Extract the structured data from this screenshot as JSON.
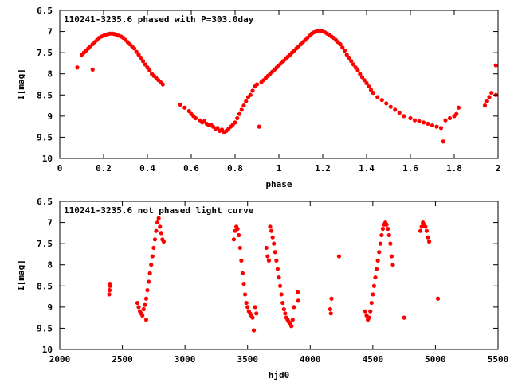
{
  "colors": {
    "marker": "#ff0000",
    "axis": "#000000",
    "background": "#ffffff"
  },
  "chart_data": [
    {
      "type": "scatter",
      "title": "110241-3235.6 phased with P=303.0day",
      "xlabel": "phase",
      "ylabel": "I[mag]",
      "xlim": [
        0,
        2
      ],
      "ylim": [
        6.5,
        10
      ],
      "y_inverted": true,
      "grid": false,
      "xticks": [
        "0",
        "0.2",
        "0.4",
        "0.6",
        "0.8",
        "1",
        "1.2",
        "1.4",
        "1.6",
        "1.8",
        "2"
      ],
      "yticks": [
        "6.5",
        "7",
        "7.5",
        "8",
        "8.5",
        "9",
        "9.5",
        "10"
      ],
      "marker": "filled-circle",
      "x": [
        0.08,
        0.1,
        0.11,
        0.12,
        0.13,
        0.14,
        0.15,
        0.16,
        0.17,
        0.18,
        0.19,
        0.2,
        0.21,
        0.22,
        0.23,
        0.24,
        0.25,
        0.26,
        0.27,
        0.28,
        0.29,
        0.3,
        0.31,
        0.32,
        0.33,
        0.34,
        0.35,
        0.36,
        0.37,
        0.38,
        0.39,
        0.4,
        0.41,
        0.42,
        0.43,
        0.44,
        0.45,
        0.46,
        0.47,
        0.15,
        0.55,
        0.57,
        0.59,
        0.6,
        0.61,
        0.62,
        0.64,
        0.65,
        0.66,
        0.67,
        0.68,
        0.69,
        0.7,
        0.71,
        0.72,
        0.73,
        0.74,
        0.75,
        0.76,
        0.77,
        0.78,
        0.79,
        0.8,
        0.81,
        0.82,
        0.83,
        0.84,
        0.85,
        0.86,
        0.87,
        0.88,
        0.89,
        0.9,
        0.91,
        0.92,
        0.93,
        0.94,
        0.95,
        0.96,
        0.97,
        0.98,
        0.99,
        1.0,
        1.01,
        1.02,
        1.03,
        1.04,
        1.05,
        1.06,
        1.07,
        1.08,
        1.09,
        1.1,
        1.11,
        1.12,
        1.13,
        1.14,
        1.15,
        1.16,
        1.17,
        1.18,
        1.19,
        1.2,
        1.21,
        1.22,
        1.23,
        1.24,
        1.25,
        1.26,
        1.27,
        1.28,
        1.29,
        1.3,
        1.31,
        1.32,
        1.33,
        1.34,
        1.35,
        1.36,
        1.37,
        1.38,
        1.39,
        1.4,
        1.41,
        1.42,
        1.43,
        1.45,
        1.47,
        1.49,
        1.51,
        1.53,
        1.55,
        1.57,
        1.6,
        1.62,
        1.64,
        1.66,
        1.68,
        1.7,
        1.72,
        1.74,
        1.75,
        1.76,
        1.78,
        1.8,
        1.81,
        1.82,
        1.94,
        1.95,
        1.96,
        1.97,
        1.99,
        1.99
      ],
      "y": [
        7.85,
        7.55,
        7.5,
        7.45,
        7.4,
        7.35,
        7.3,
        7.25,
        7.2,
        7.15,
        7.12,
        7.1,
        7.08,
        7.06,
        7.05,
        7.05,
        7.06,
        7.08,
        7.1,
        7.12,
        7.15,
        7.2,
        7.25,
        7.3,
        7.35,
        7.4,
        7.48,
        7.55,
        7.62,
        7.7,
        7.78,
        7.85,
        7.92,
        8.0,
        8.05,
        8.1,
        8.15,
        8.2,
        8.25,
        7.9,
        8.73,
        8.8,
        8.88,
        8.95,
        9.0,
        9.05,
        9.1,
        9.15,
        9.12,
        9.18,
        9.22,
        9.2,
        9.25,
        9.3,
        9.28,
        9.35,
        9.32,
        9.38,
        9.35,
        9.3,
        9.25,
        9.2,
        9.15,
        9.05,
        8.95,
        8.85,
        8.75,
        8.65,
        8.55,
        8.5,
        8.4,
        8.3,
        8.25,
        9.25,
        8.2,
        8.15,
        8.1,
        8.05,
        8.0,
        7.95,
        7.9,
        7.85,
        7.8,
        7.75,
        7.7,
        7.65,
        7.6,
        7.55,
        7.5,
        7.45,
        7.4,
        7.35,
        7.3,
        7.25,
        7.2,
        7.15,
        7.1,
        7.05,
        7.02,
        7.0,
        6.98,
        6.98,
        7.0,
        7.02,
        7.05,
        7.08,
        7.12,
        7.15,
        7.2,
        7.25,
        7.3,
        7.38,
        7.45,
        7.55,
        7.62,
        7.7,
        7.78,
        7.85,
        7.92,
        8.0,
        8.08,
        8.15,
        8.22,
        8.3,
        8.38,
        8.45,
        8.55,
        8.62,
        8.7,
        8.78,
        8.85,
        8.92,
        9.0,
        9.05,
        9.1,
        9.12,
        9.15,
        9.18,
        9.22,
        9.25,
        9.28,
        9.6,
        9.1,
        9.05,
        9.0,
        8.95,
        8.8,
        8.75,
        8.65,
        8.55,
        8.45,
        8.5,
        7.8
      ],
      "xlim_note": ""
    },
    {
      "type": "scatter",
      "title": "110241-3235.6 not phased light curve",
      "xlabel": "hjd0",
      "ylabel": "I[mag]",
      "xlim": [
        2000,
        5500
      ],
      "ylim": [
        6.5,
        10
      ],
      "y_inverted": true,
      "grid": false,
      "xticks": [
        "2000",
        "2500",
        "3000",
        "3500",
        "4000",
        "4500",
        "5000",
        "5500"
      ],
      "yticks": [
        "6.5",
        "7",
        "7.5",
        "8",
        "8.5",
        "9",
        "9.5",
        "10"
      ],
      "marker": "filled-circle",
      "x": [
        2395,
        2398,
        2400,
        2402,
        2620,
        2630,
        2640,
        2650,
        2660,
        2670,
        2680,
        2690,
        2700,
        2710,
        2720,
        2730,
        2740,
        2750,
        2760,
        2770,
        2780,
        2790,
        2800,
        2810,
        2820,
        2830,
        2690,
        3390,
        3400,
        3410,
        3420,
        3430,
        3440,
        3450,
        3460,
        3470,
        3480,
        3490,
        3500,
        3510,
        3520,
        3530,
        3540,
        3550,
        3560,
        3570,
        3650,
        3660,
        3670,
        3680,
        3690,
        3700,
        3710,
        3720,
        3730,
        3740,
        3750,
        3760,
        3770,
        3780,
        3790,
        3800,
        3810,
        3820,
        3830,
        3840,
        3850,
        3860,
        3870,
        3900,
        3905,
        4160,
        4165,
        4170,
        4230,
        4440,
        4450,
        4460,
        4470,
        4480,
        4490,
        4500,
        4510,
        4520,
        4530,
        4540,
        4550,
        4560,
        4570,
        4580,
        4590,
        4600,
        4610,
        4620,
        4630,
        4640,
        4650,
        4660,
        4750,
        4880,
        4890,
        4900,
        4910,
        4920,
        4930,
        4940,
        4950,
        5020
      ],
      "y": [
        8.7,
        8.6,
        8.45,
        8.5,
        8.9,
        9.0,
        9.1,
        9.15,
        9.2,
        9.05,
        8.95,
        8.8,
        8.6,
        8.4,
        8.2,
        8.0,
        7.8,
        7.6,
        7.4,
        7.2,
        7.0,
        6.9,
        7.1,
        7.25,
        7.4,
        7.45,
        9.3,
        7.4,
        7.2,
        7.1,
        7.15,
        7.3,
        7.6,
        7.9,
        8.2,
        8.45,
        8.7,
        8.9,
        9.0,
        9.1,
        9.15,
        9.2,
        9.25,
        9.55,
        9.0,
        9.15,
        7.6,
        7.8,
        7.9,
        7.1,
        7.2,
        7.35,
        7.5,
        7.7,
        7.9,
        8.1,
        8.3,
        8.5,
        8.7,
        8.9,
        9.05,
        9.15,
        9.25,
        9.3,
        9.35,
        9.4,
        9.45,
        9.3,
        9.0,
        8.65,
        8.85,
        9.05,
        9.15,
        8.8,
        7.8,
        9.1,
        9.2,
        9.3,
        9.25,
        9.1,
        8.9,
        8.7,
        8.5,
        8.3,
        8.1,
        7.9,
        7.7,
        7.5,
        7.3,
        7.15,
        7.05,
        7.0,
        7.05,
        7.15,
        7.3,
        7.5,
        7.8,
        8.0,
        9.25,
        7.2,
        7.1,
        7.0,
        7.05,
        7.1,
        7.2,
        7.35,
        7.45,
        8.8
      ]
    }
  ]
}
